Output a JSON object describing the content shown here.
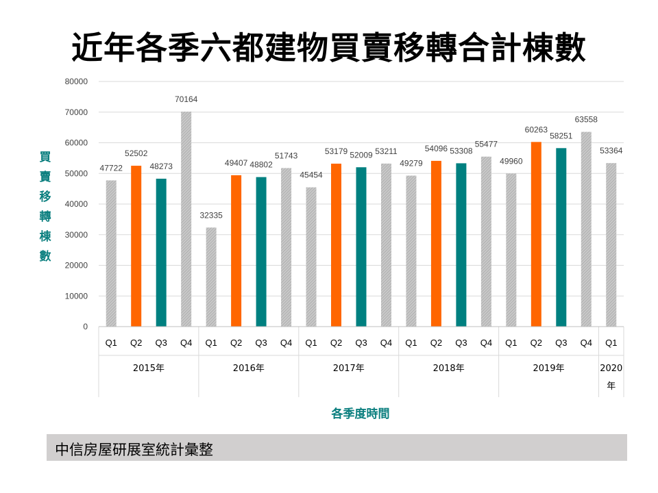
{
  "title": "近年各季六都建物買賣移轉合計棟數",
  "footer_text": "中信房屋研展室統計彙整",
  "colors": {
    "q2": "#ff6600",
    "q3": "#008080",
    "gray": "#bfbfbf",
    "axis_title": "#0b7f7f"
  },
  "chart_data": {
    "type": "bar",
    "title": "近年各季六都建物買賣移轉合計棟數",
    "ylabel": "買賣移轉棟數",
    "xlabel": "各季度時間",
    "ylim": [
      0,
      80000
    ],
    "yticks": [
      "0",
      "10000",
      "20000",
      "30000",
      "40000",
      "50000",
      "60000",
      "70000",
      "80000"
    ],
    "grid": true,
    "groups": [
      {
        "label": "2015年",
        "quarters": [
          "Q1",
          "Q2",
          "Q3",
          "Q4"
        ],
        "values": [
          47722,
          52502,
          48273,
          70164
        ]
      },
      {
        "label": "2016年",
        "quarters": [
          "Q1",
          "Q2",
          "Q3",
          "Q4"
        ],
        "values": [
          32335,
          49407,
          48802,
          51743
        ]
      },
      {
        "label": "2017年",
        "quarters": [
          "Q1",
          "Q2",
          "Q3",
          "Q4"
        ],
        "values": [
          45454,
          53179,
          52009,
          53211
        ]
      },
      {
        "label": "2018年",
        "quarters": [
          "Q1",
          "Q2",
          "Q3",
          "Q4"
        ],
        "values": [
          49279,
          54096,
          53308,
          55477
        ]
      },
      {
        "label": "2019年",
        "quarters": [
          "Q1",
          "Q2",
          "Q3",
          "Q4"
        ],
        "values": [
          49960,
          60263,
          58251,
          63558
        ]
      },
      {
        "label": "2020年",
        "quarters": [
          "Q1"
        ],
        "values": [
          53364
        ]
      }
    ]
  }
}
